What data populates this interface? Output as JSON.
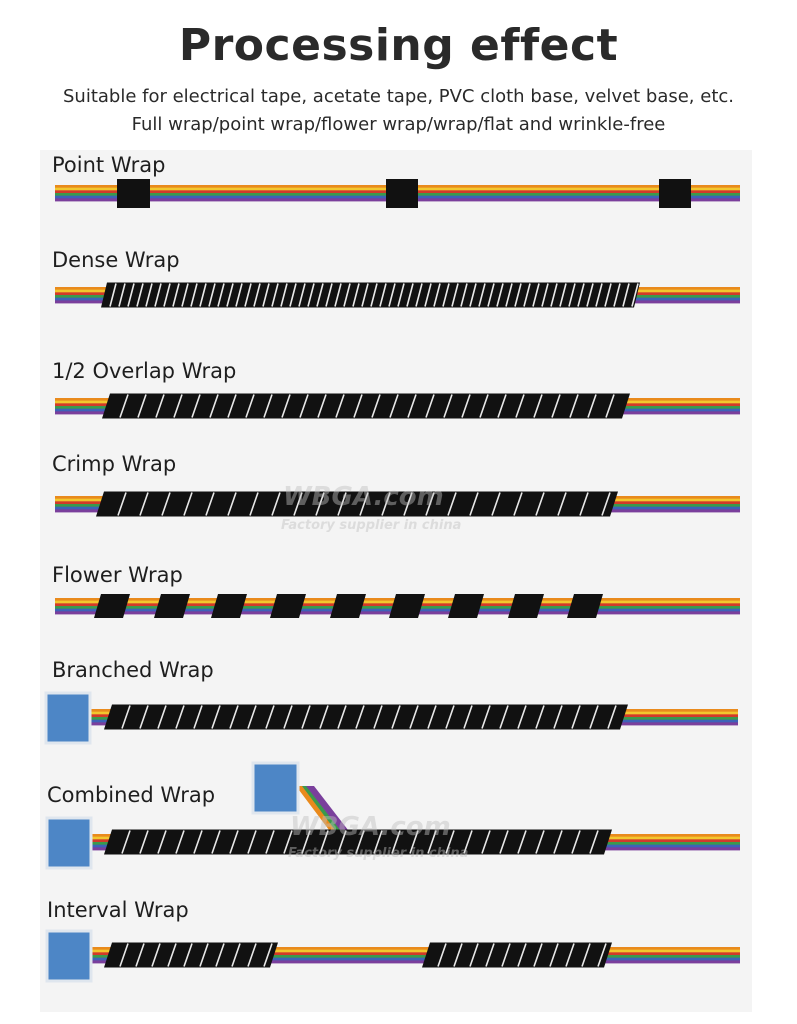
{
  "header": {
    "title": "Processing effect",
    "subtitle_line1": "Suitable for electrical tape, acetate tape, PVC cloth base, velvet base, etc.",
    "subtitle_line2": "Full wrap/point wrap/flower wrap/wrap/flat and wrinkle-free"
  },
  "wraps": [
    {
      "label": "Point Wrap"
    },
    {
      "label": "Dense Wrap"
    },
    {
      "label": "1/2 Overlap Wrap"
    },
    {
      "label": "Crimp Wrap"
    },
    {
      "label": "Flower Wrap"
    },
    {
      "label": "Branched Wrap"
    },
    {
      "label": "Combined Wrap"
    },
    {
      "label": "Interval Wrap"
    }
  ],
  "watermark": {
    "logo": "WBGA.com",
    "tagline": "Factory supplier in china"
  },
  "colors": {
    "tape": "#111111",
    "connector": "#4d86c6",
    "cable_stripes": [
      "#e98a1c",
      "#f2c72e",
      "#d23a2a",
      "#3b9a4c",
      "#3d62b8",
      "#7a3f9c"
    ]
  }
}
